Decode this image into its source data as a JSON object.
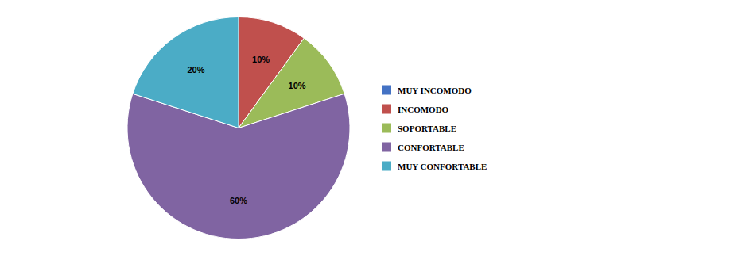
{
  "chart_data": {
    "type": "pie",
    "categories": [
      "MUY INCOMODO",
      "INCOMODO",
      "SOPORTABLE",
      "CONFORTABLE",
      "MUY CONFORTABLE"
    ],
    "values": [
      0,
      10,
      10,
      60,
      20
    ],
    "value_labels": [
      null,
      "10%",
      "10%",
      "60%",
      "20%"
    ],
    "colors": [
      "#4472C4",
      "#C0504D",
      "#9BBB59",
      "#8064A2",
      "#4BACC6"
    ],
    "data_labels": true,
    "legend": "right"
  }
}
